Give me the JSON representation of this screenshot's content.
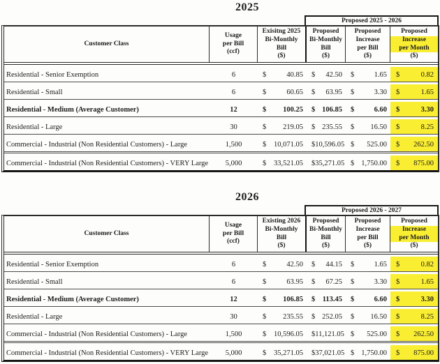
{
  "currency": "$",
  "highlight_color": "#FAEE33",
  "tables": [
    {
      "title": "2025",
      "group_header": "Proposed 2025 - 2026",
      "headers": {
        "customer_class": "Customer Class",
        "usage": "Usage\nper Bill\n(ccf)",
        "existing": "Exisitng 2025\nBi-Monthly\nBill\n($)",
        "proposed_bill": "Proposed\nBi-Monthly\nBill\n($)",
        "increase_bill": "Proposed\nIncrease\nper Bill\n($)",
        "increase_month_lines": [
          "Proposed",
          "Increase",
          "per Month",
          "($)"
        ]
      },
      "rows": [
        {
          "name": "Residential - Senior Exemption",
          "usage": "6",
          "existing": "40.85",
          "proposed": "42.50",
          "inc_bill": "1.65",
          "inc_month": "0.82"
        },
        {
          "name": "Residential - Small",
          "usage": "6",
          "existing": "60.65",
          "proposed": "63.95",
          "inc_bill": "3.30",
          "inc_month": "1.65"
        },
        {
          "name": "Residential - Medium (Average Customer)",
          "usage": "12",
          "existing": "100.25",
          "proposed": "106.85",
          "inc_bill": "6.60",
          "inc_month": "3.30"
        },
        {
          "name": "Residential - Large",
          "usage": "30",
          "existing": "219.05",
          "proposed": "235.55",
          "inc_bill": "16.50",
          "inc_month": "8.25"
        },
        {
          "name": "Commercial - Industrial (Non Residential Customers) - Large",
          "usage": "1,500",
          "existing": "10,071.05",
          "proposed": "10,596.05",
          "inc_bill": "525.00",
          "inc_month": "262.50"
        },
        {
          "name": "Commercial - Industrial (Non Residential Customers) - VERY Large",
          "usage": "5,000",
          "existing": "33,521.05",
          "proposed": "35,271.05",
          "inc_bill": "1,750.00",
          "inc_month": "875.00"
        }
      ]
    },
    {
      "title": "2026",
      "group_header": "Proposed 2026 - 2027",
      "headers": {
        "customer_class": "Customer Class",
        "usage": "Usage\nper Bill\n(ccf)",
        "existing": "Existing 2026\nBi-Monthly\nBill\n($)",
        "proposed_bill": "Proposed\nBi-Monthly\nBill\n($)",
        "increase_bill": "Proposed\nIncrease\nper Bill\n($)",
        "increase_month_lines": [
          "Proposed",
          "Increase",
          "per Month",
          "($)"
        ]
      },
      "rows": [
        {
          "name": "Residential - Senior Exemption",
          "usage": "6",
          "existing": "42.50",
          "proposed": "44.15",
          "inc_bill": "1.65",
          "inc_month": "0.82"
        },
        {
          "name": "Residential - Small",
          "usage": "6",
          "existing": "63.95",
          "proposed": "67.25",
          "inc_bill": "3.30",
          "inc_month": "1.65"
        },
        {
          "name": "Residential - Medium (Average Customer)",
          "usage": "12",
          "existing": "106.85",
          "proposed": "113.45",
          "inc_bill": "6.60",
          "inc_month": "3.30"
        },
        {
          "name": "Residential - Large",
          "usage": "30",
          "existing": "235.55",
          "proposed": "252.05",
          "inc_bill": "16.50",
          "inc_month": "8.25"
        },
        {
          "name": "Commercial - Industrial (Non Residential Customers) - Large",
          "usage": "1,500",
          "existing": "10,596.05",
          "proposed": "11,121.05",
          "inc_bill": "525.00",
          "inc_month": "262.50"
        },
        {
          "name": "Commercial - Industrial (Non Residential Customers) - VERY Large",
          "usage": "5,000",
          "existing": "35,271.05",
          "proposed": "37,021.05",
          "inc_bill": "1,750.00",
          "inc_month": "875.00"
        }
      ]
    }
  ]
}
